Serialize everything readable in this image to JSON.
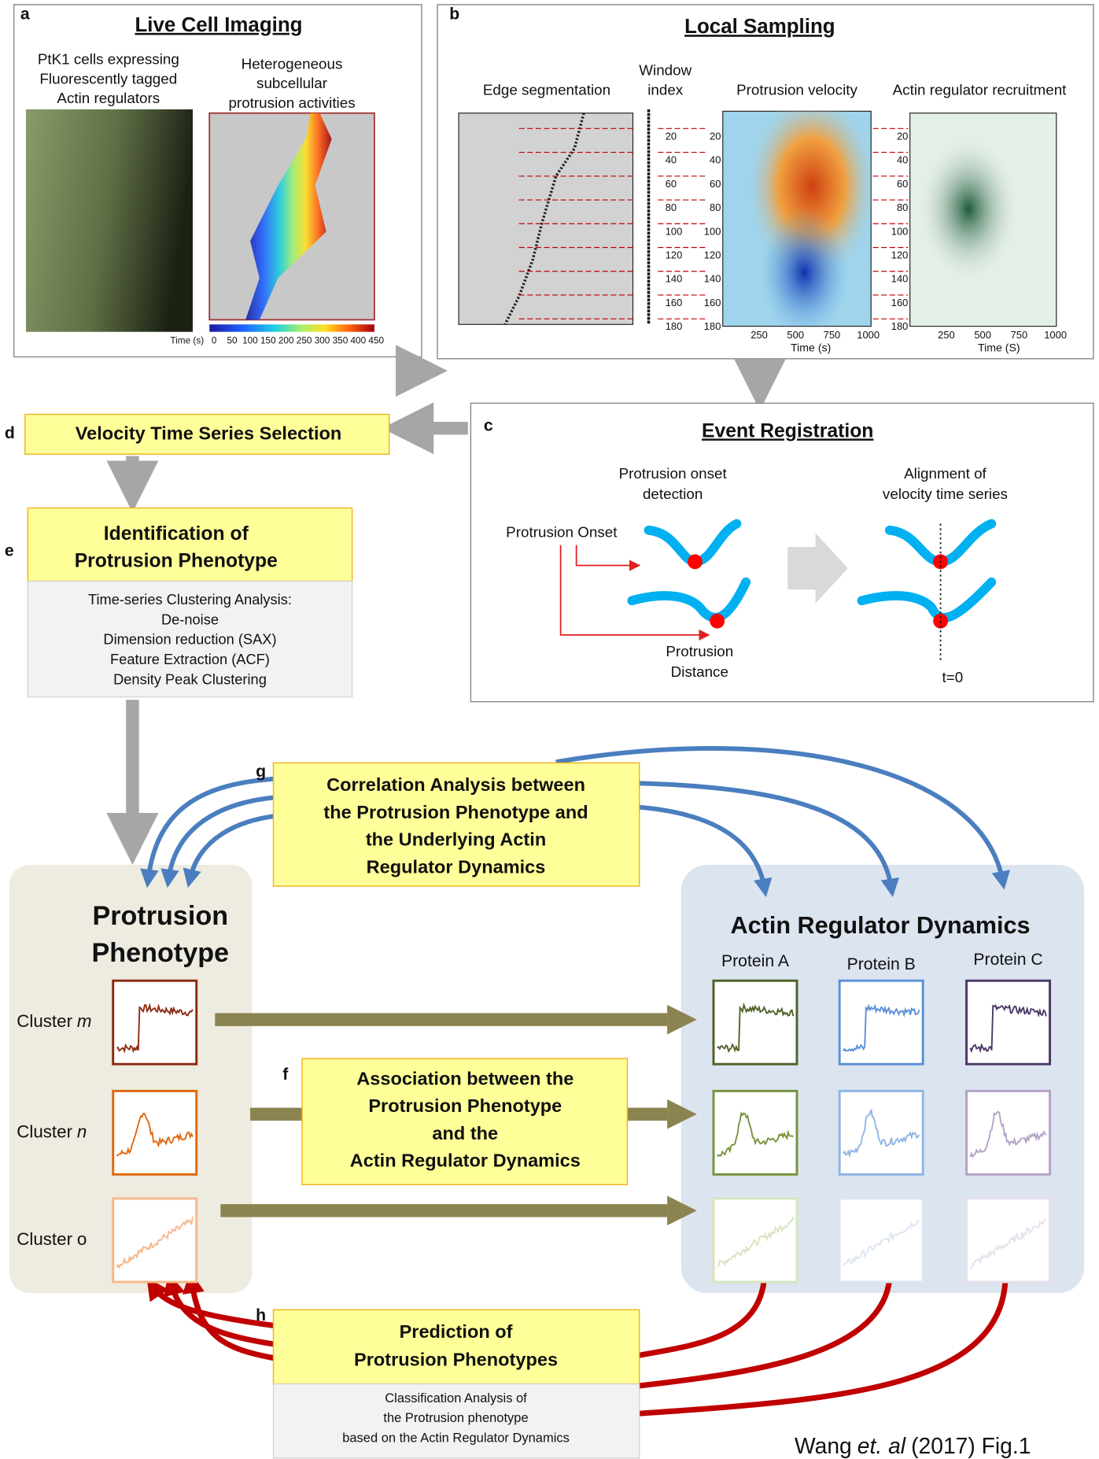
{
  "panels": {
    "a": {
      "letter": "a",
      "title": "Live Cell Imaging",
      "caption_left": [
        "PtK1 cells expressing",
        "Fluorescently tagged",
        "Actin regulators"
      ],
      "caption_right": [
        "Heterogeneous",
        "subcellular",
        "protrusion activities"
      ],
      "colorbar_label": "Time (s)",
      "colorbar_ticks": [
        0,
        50,
        100,
        150,
        200,
        250,
        300,
        350,
        400,
        450
      ]
    },
    "b": {
      "letter": "b",
      "title": "Local Sampling",
      "edge": "Edge segmentation",
      "window_index": [
        "Window",
        "index"
      ],
      "velocity": "Protrusion velocity",
      "recruitment": "Actin regulator recruitment",
      "window_ticks": [
        20,
        40,
        60,
        80,
        100,
        120,
        140,
        160,
        180
      ],
      "time_ticks": [
        250,
        500,
        750,
        1000
      ],
      "xlabel_velocity": "Time (s)",
      "xlabel_recruitment": "Time (S)"
    },
    "c": {
      "letter": "c",
      "title": "Event Registration",
      "onset_detection": [
        "Protrusion onset",
        "detection"
      ],
      "alignment": [
        "Alignment of",
        "velocity time series"
      ],
      "onset": "Protrusion Onset",
      "distance": [
        "Protrusion",
        "Distance"
      ],
      "t0": "t=0"
    },
    "d": {
      "letter": "d",
      "title": "Velocity Time Series Selection"
    },
    "e": {
      "letter": "e",
      "title": [
        "Identification of",
        "Protrusion Phenotype"
      ],
      "steps": [
        "Time-series Clustering Analysis:",
        "De-noise",
        "Dimension reduction (SAX)",
        "Feature Extraction (ACF)",
        "Density Peak Clustering"
      ]
    },
    "f": {
      "letter": "f",
      "title": [
        "Association between the",
        "Protrusion Phenotype",
        "and the",
        "Actin Regulator Dynamics"
      ]
    },
    "g": {
      "letter": "g",
      "title": [
        "Correlation Analysis between",
        "the Protrusion Phenotype and",
        "the Underlying Actin",
        "Regulator Dynamics"
      ]
    },
    "h": {
      "letter": "h",
      "title": [
        "Prediction of",
        "Protrusion Phenotypes"
      ],
      "steps": [
        "Classification Analysis of",
        "the Protrusion phenotype",
        "based on the Actin Regulator Dynamics"
      ]
    }
  },
  "phenotype": {
    "title": [
      "Protrusion",
      "Phenotype"
    ],
    "clusters": [
      {
        "name": "Cluster",
        "letter": "m",
        "italic": true
      },
      {
        "name": "Cluster",
        "letter": "n",
        "italic": true
      },
      {
        "name": "Cluster",
        "letter": "o",
        "italic": false
      }
    ]
  },
  "regulators": {
    "title": "Actin Regulator Dynamics",
    "proteins": [
      "Protein A",
      "Protein B",
      "Protein C"
    ]
  },
  "citation": {
    "author": "Wang",
    "etal": "et. al",
    "rest": "(2017) Fig.1"
  }
}
